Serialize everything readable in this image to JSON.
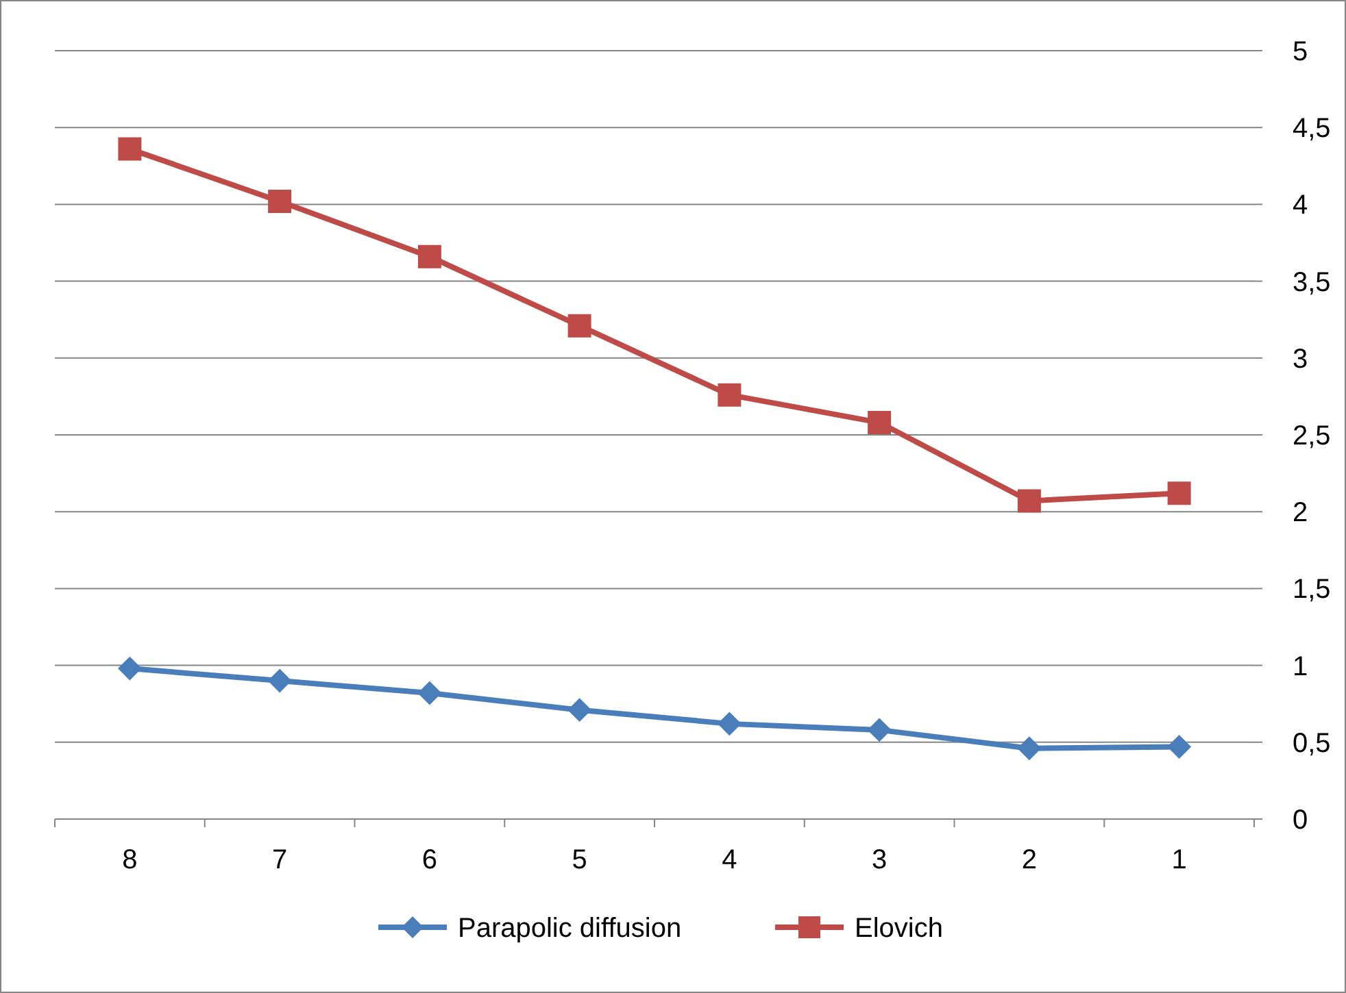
{
  "chart_data": {
    "type": "line",
    "categories": [
      "8",
      "7",
      "6",
      "5",
      "4",
      "3",
      "2",
      "1"
    ],
    "series": [
      {
        "name": "Parapolic diffusion",
        "color": "#4a7ebb",
        "marker": "diamond",
        "values": [
          0.98,
          0.9,
          0.82,
          0.71,
          0.62,
          0.58,
          0.46,
          0.47
        ]
      },
      {
        "name": "Elovich",
        "color": "#be4b48",
        "marker": "square",
        "values": [
          4.36,
          4.02,
          3.66,
          3.21,
          2.76,
          2.58,
          2.07,
          2.12
        ]
      }
    ],
    "ylim": [
      0,
      5
    ],
    "yticks": [
      0,
      {
        "value": 0.5,
        "label": "0,5"
      },
      1,
      {
        "value": 1.5,
        "label": "1,5"
      },
      2,
      {
        "value": 2.5,
        "label": "2,5"
      },
      3,
      {
        "value": 3.5,
        "label": "3,5"
      },
      4,
      {
        "value": 4.5,
        "label": "4,5"
      },
      5
    ],
    "grid": "y",
    "legend": "bottom"
  }
}
